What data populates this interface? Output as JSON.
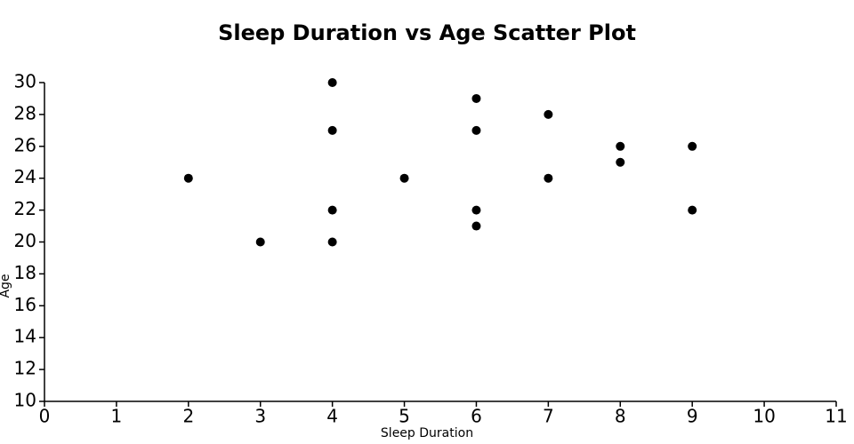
{
  "chart_data": {
    "type": "scatter",
    "title": "Sleep Duration vs Age Scatter Plot",
    "x_label": "Sleep Duration",
    "y_label": "Age",
    "x": [
      2,
      3,
      4,
      4,
      4,
      4,
      5,
      6,
      6,
      6,
      6,
      7,
      7,
      8,
      8,
      9,
      9
    ],
    "values": [
      24,
      20,
      30,
      27,
      22,
      20,
      24,
      29,
      27,
      22,
      21,
      28,
      24,
      26,
      25,
      26,
      22
    ],
    "color": "#000000",
    "xlim": [
      0,
      11
    ],
    "xticks": [
      0,
      1,
      2,
      3,
      4,
      5,
      6,
      7,
      8,
      9,
      10,
      11
    ],
    "ylim": [
      10,
      30
    ],
    "yticks": [
      10,
      12,
      14,
      16,
      18,
      20,
      22,
      24,
      26,
      28,
      30
    ],
    "grid": false
  }
}
